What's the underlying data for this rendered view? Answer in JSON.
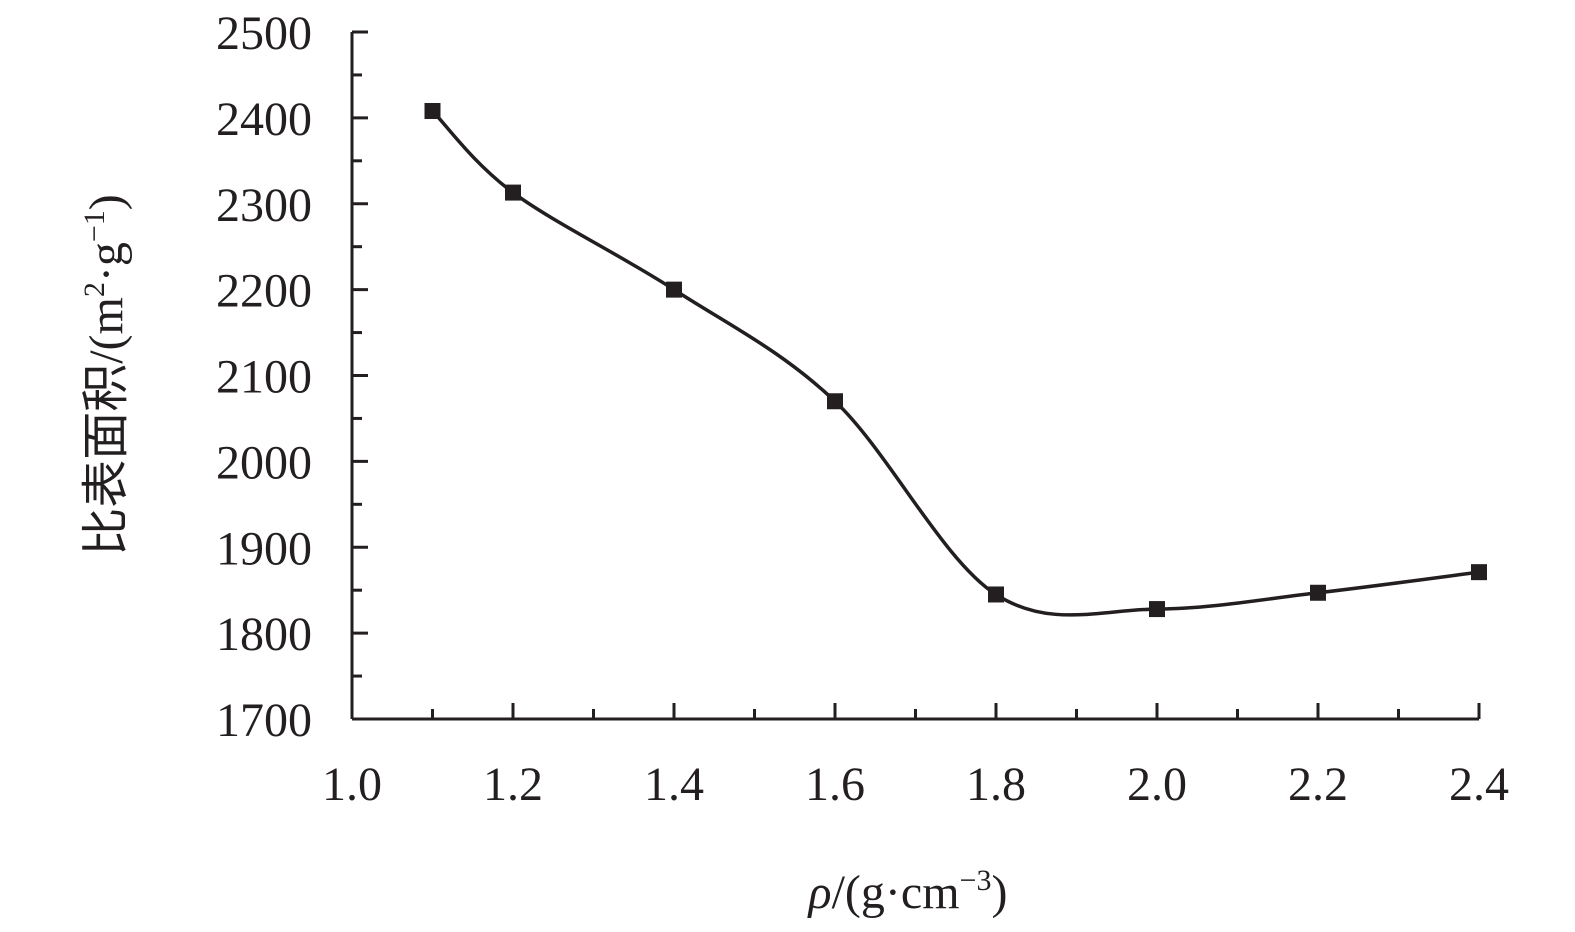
{
  "chart_data": {
    "type": "line",
    "xlabel": "ρ/(g·cm−3)",
    "xlabel_parts": {
      "symbol": "ρ",
      "prefix": "/(g·cm",
      "sup": "−3",
      "suffix": ")"
    },
    "ylabel": "比表面积/(m2·g−1)",
    "ylabel_parts": {
      "prefix": "比表面积/(m",
      "sup1": "2",
      "mid": "·g",
      "sup2": "−1",
      "suffix": ")"
    },
    "xlim": [
      1.0,
      2.4
    ],
    "ylim": [
      1700,
      2500
    ],
    "xticks": [
      1.0,
      1.2,
      1.4,
      1.6,
      1.8,
      2.0,
      2.2,
      2.4
    ],
    "xtick_labels": [
      "1.0",
      "1.2",
      "1.4",
      "1.6",
      "1.8",
      "2.0",
      "2.2",
      "2.4"
    ],
    "yticks": [
      1700,
      1800,
      1900,
      2000,
      2100,
      2200,
      2300,
      2400,
      2500
    ],
    "ytick_labels": [
      "1700",
      "1800",
      "1900",
      "2000",
      "2100",
      "2200",
      "2300",
      "2400",
      "2500"
    ],
    "grid": false,
    "smooth": true,
    "marker": "square",
    "color": "#231f20",
    "series": [
      {
        "x": [
          1.1,
          1.2,
          1.4,
          1.6,
          1.8,
          2.0,
          2.2,
          2.4
        ],
        "y": [
          2408,
          2313,
          2200,
          2070,
          1845,
          1828,
          1847,
          1871
        ]
      }
    ]
  }
}
